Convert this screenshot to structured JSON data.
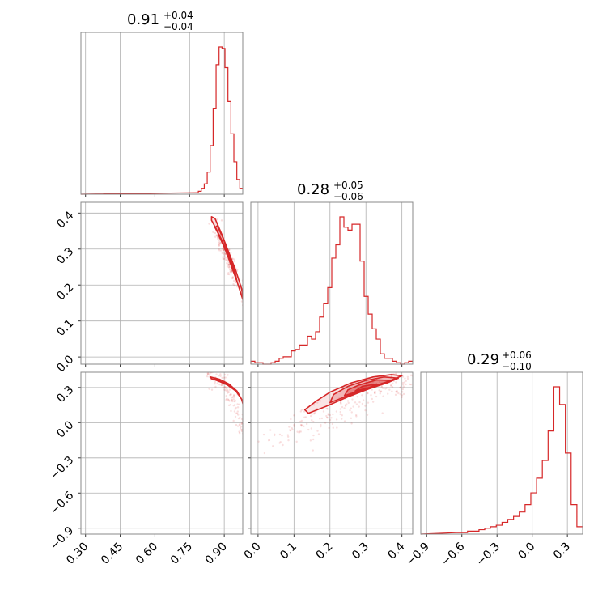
{
  "chart_data": {
    "type": "corner",
    "color": "#d62728",
    "parameters": [
      {
        "title_value": "0.91",
        "title_plus": "+0.04",
        "title_minus": "−0.04",
        "range": [
          0.28,
          0.98
        ],
        "ticks": [
          0.3,
          0.45,
          0.6,
          0.75,
          0.9
        ],
        "tick_labels": [
          "0.30",
          "0.45",
          "0.60",
          "0.75",
          "0.90"
        ],
        "hist_bins": [
          0.775,
          0.98
        ],
        "hist_values": [
          0.01,
          0.02,
          0.04,
          0.07,
          0.15,
          0.33,
          0.58,
          0.88,
          1.0,
          0.99,
          0.86,
          0.63,
          0.41,
          0.22,
          0.1,
          0.04
        ]
      },
      {
        "title_value": "0.28",
        "title_plus": "+0.05",
        "title_minus": "−0.06",
        "range": [
          -0.02,
          0.43
        ],
        "ticks": [
          0.0,
          0.1,
          0.2,
          0.3,
          0.4
        ],
        "tick_labels": [
          "0.0",
          "0.1",
          "0.2",
          "0.3",
          "0.4"
        ],
        "hist_bins": [
          -0.02,
          0.43
        ],
        "hist_values": [
          0.02,
          0.01,
          0.01,
          0.0,
          0.0,
          0.01,
          0.02,
          0.04,
          0.05,
          0.05,
          0.09,
          0.1,
          0.13,
          0.13,
          0.19,
          0.17,
          0.22,
          0.32,
          0.41,
          0.52,
          0.72,
          0.81,
          1.0,
          0.93,
          0.91,
          0.95,
          0.95,
          0.7,
          0.46,
          0.34,
          0.24,
          0.17,
          0.07,
          0.04,
          0.04,
          0.02,
          0.01,
          0.0,
          0.01,
          0.02
        ]
      },
      {
        "title_value": "0.29",
        "title_plus": "+0.06",
        "title_minus": "−0.10",
        "range": [
          -0.95,
          0.43
        ],
        "ticks": [
          -0.9,
          -0.6,
          -0.3,
          0.0,
          0.3
        ],
        "tick_labels": [
          "−0.9",
          "−0.6",
          "−0.3",
          "0.0",
          "0.3"
        ],
        "hist_bins": [
          -0.65,
          0.43
        ],
        "hist_values": [
          0.01,
          0.01,
          0.02,
          0.02,
          0.03,
          0.04,
          0.05,
          0.06,
          0.08,
          0.1,
          0.12,
          0.15,
          0.2,
          0.28,
          0.38,
          0.5,
          0.7,
          1.0,
          0.88,
          0.55,
          0.2,
          0.05
        ]
      }
    ],
    "y_tick_labels_row2": [
      "0.0",
      "0.1",
      "0.2",
      "0.3",
      "0.4"
    ],
    "y_ticks_row2": [
      0.0,
      0.1,
      0.2,
      0.3,
      0.4
    ],
    "y_range_row2": [
      -0.02,
      0.43
    ],
    "y_tick_labels_row3": [
      "−0.9",
      "−0.6",
      "−0.3",
      "0.0",
      "0.3"
    ],
    "y_ticks_row3": [
      -0.9,
      -0.6,
      -0.3,
      0.0,
      0.3
    ],
    "y_range_row3": [
      -0.95,
      0.43
    ],
    "contours": {
      "p1_p2": [
        {
          "points": [
            [
              0.845,
              0.38
            ],
            [
              0.87,
              0.35
            ],
            [
              0.9,
              0.31
            ],
            [
              0.93,
              0.26
            ],
            [
              0.955,
              0.21
            ],
            [
              0.975,
              0.17
            ],
            [
              0.985,
              0.15
            ],
            [
              0.975,
              0.19
            ],
            [
              0.95,
              0.24
            ],
            [
              0.92,
              0.29
            ],
            [
              0.89,
              0.34
            ],
            [
              0.86,
              0.385
            ],
            [
              0.845,
              0.39
            ]
          ]
        },
        {
          "points": [
            [
              0.86,
              0.36
            ],
            [
              0.885,
              0.33
            ],
            [
              0.91,
              0.29
            ],
            [
              0.935,
              0.245
            ],
            [
              0.955,
              0.21
            ],
            [
              0.945,
              0.24
            ],
            [
              0.92,
              0.285
            ],
            [
              0.895,
              0.33
            ],
            [
              0.87,
              0.365
            ]
          ]
        },
        {
          "points": [
            [
              0.875,
              0.34
            ],
            [
              0.9,
              0.305
            ],
            [
              0.925,
              0.265
            ],
            [
              0.91,
              0.29
            ],
            [
              0.885,
              0.33
            ]
          ]
        }
      ],
      "p1_p3": [
        {
          "points": [
            [
              0.84,
              0.39
            ],
            [
              0.88,
              0.37
            ],
            [
              0.92,
              0.33
            ],
            [
              0.955,
              0.27
            ],
            [
              0.975,
              0.2
            ],
            [
              0.985,
              0.13
            ],
            [
              0.975,
              0.2
            ],
            [
              0.95,
              0.27
            ],
            [
              0.915,
              0.32
            ],
            [
              0.875,
              0.355
            ],
            [
              0.845,
              0.375
            ]
          ]
        },
        {
          "points": [
            [
              0.855,
              0.38
            ],
            [
              0.89,
              0.36
            ],
            [
              0.925,
              0.32
            ],
            [
              0.955,
              0.26
            ],
            [
              0.945,
              0.28
            ],
            [
              0.915,
              0.325
            ],
            [
              0.88,
              0.355
            ]
          ]
        }
      ],
      "p2_p3": [
        {
          "points": [
            [
              0.14,
              0.08
            ],
            [
              0.19,
              0.14
            ],
            [
              0.25,
              0.22
            ],
            [
              0.31,
              0.29
            ],
            [
              0.36,
              0.35
            ],
            [
              0.4,
              0.4
            ],
            [
              0.37,
              0.41
            ],
            [
              0.32,
              0.39
            ],
            [
              0.26,
              0.34
            ],
            [
              0.2,
              0.26
            ],
            [
              0.16,
              0.18
            ],
            [
              0.13,
              0.11
            ]
          ]
        },
        {
          "points": [
            [
              0.2,
              0.17
            ],
            [
              0.25,
              0.23
            ],
            [
              0.31,
              0.29
            ],
            [
              0.36,
              0.34
            ],
            [
              0.39,
              0.38
            ],
            [
              0.35,
              0.39
            ],
            [
              0.3,
              0.36
            ],
            [
              0.25,
              0.31
            ],
            [
              0.21,
              0.24
            ]
          ]
        },
        {
          "points": [
            [
              0.24,
              0.23
            ],
            [
              0.29,
              0.28
            ],
            [
              0.34,
              0.33
            ],
            [
              0.37,
              0.36
            ],
            [
              0.33,
              0.365
            ],
            [
              0.28,
              0.32
            ],
            [
              0.25,
              0.28
            ]
          ]
        },
        {
          "points": [
            [
              0.27,
              0.27
            ],
            [
              0.31,
              0.3
            ],
            [
              0.33,
              0.33
            ],
            [
              0.29,
              0.31
            ]
          ]
        }
      ]
    },
    "scatter": {
      "p1_p2": {
        "center_x": 0.91,
        "center_y": 0.28,
        "slope": -1.6,
        "spread_x": 0.04,
        "spread_y": 0.02,
        "count": 160
      },
      "p1_p3": {
        "center_x": 0.915,
        "center_y": 0.28,
        "count": 140
      },
      "p2_p3": {
        "center_x": 0.27,
        "center_y": 0.27,
        "count": 220
      }
    },
    "grid": true,
    "xlabel": "",
    "ylabel": ""
  }
}
